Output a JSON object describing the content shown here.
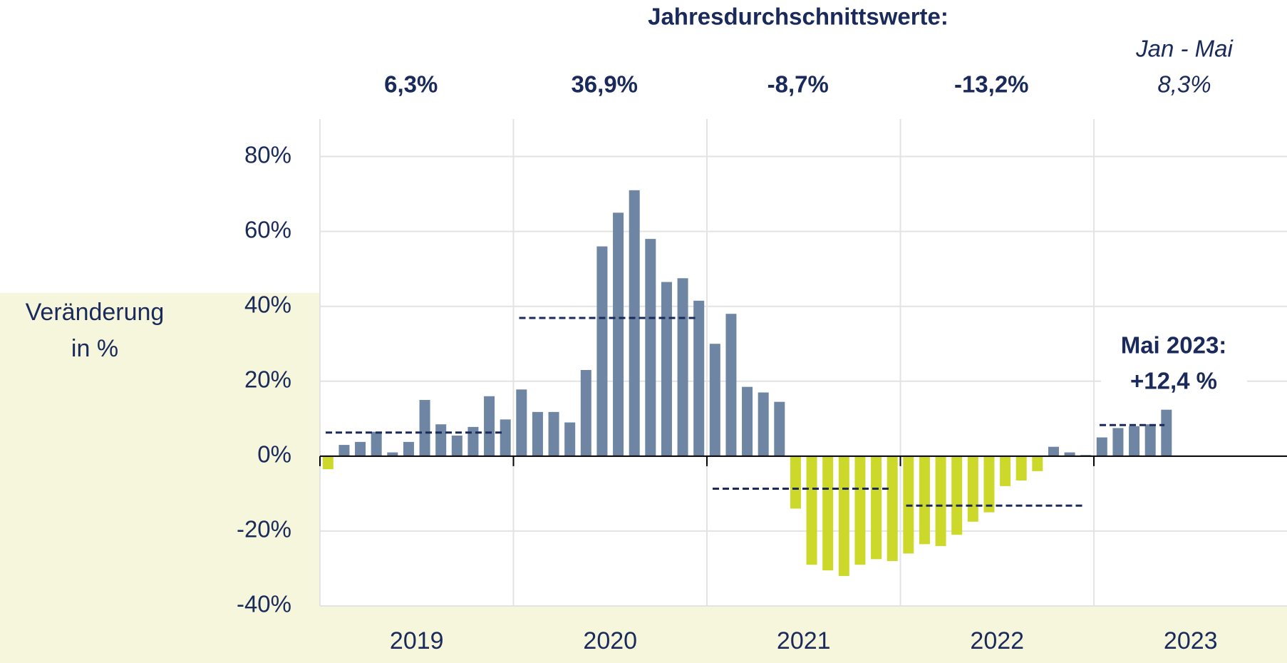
{
  "chart_data": {
    "type": "bar",
    "title": "Jahresdurchschnittswerte:",
    "ylabel": [
      "Veränderung",
      "in %"
    ],
    "years": [
      "2019",
      "2020",
      "2021",
      "2022",
      "2023"
    ],
    "values": [
      -3.5,
      3,
      3.8,
      6.5,
      1,
      3.8,
      15,
      8.5,
      5.5,
      7.8,
      16,
      9.8,
      17.8,
      11.8,
      11.8,
      9,
      23,
      56,
      65,
      71,
      58,
      46.5,
      47.5,
      41.5,
      30,
      38,
      18.5,
      17,
      14.5,
      -14,
      -29,
      -30.5,
      -32,
      -29,
      -27.5,
      -28,
      -26,
      -23.5,
      -24,
      -21,
      -17.5,
      -15,
      -8,
      -6.5,
      -4,
      2.5,
      1,
      0.3,
      5,
      7.5,
      8,
      8.5,
      12.4
    ],
    "positive_color": "#6e86a3",
    "negative_color": "#cdd92a",
    "averages": {
      "values": [
        6.3,
        36.9,
        -8.7,
        -13.2,
        8.3
      ],
      "value_labels": [
        "6,3%",
        "36,9%",
        "-8,7%",
        "-13,2%",
        "8,3%"
      ],
      "color": "#1a2a5a"
    },
    "period_note": "Jan - Mai",
    "annotation": [
      "Mai 2023:",
      "+12,4 %"
    ],
    "ylim": [
      -40,
      90
    ],
    "yticks": [
      {
        "value": -40,
        "label": "-40%"
      },
      {
        "value": -20,
        "label": "-20%"
      },
      {
        "value": 0,
        "label": "0%"
      },
      {
        "value": 20,
        "label": "20%"
      },
      {
        "value": 40,
        "label": "40%"
      },
      {
        "value": 60,
        "label": "60%"
      },
      {
        "value": 80,
        "label": "80%"
      }
    ],
    "grid": true
  }
}
